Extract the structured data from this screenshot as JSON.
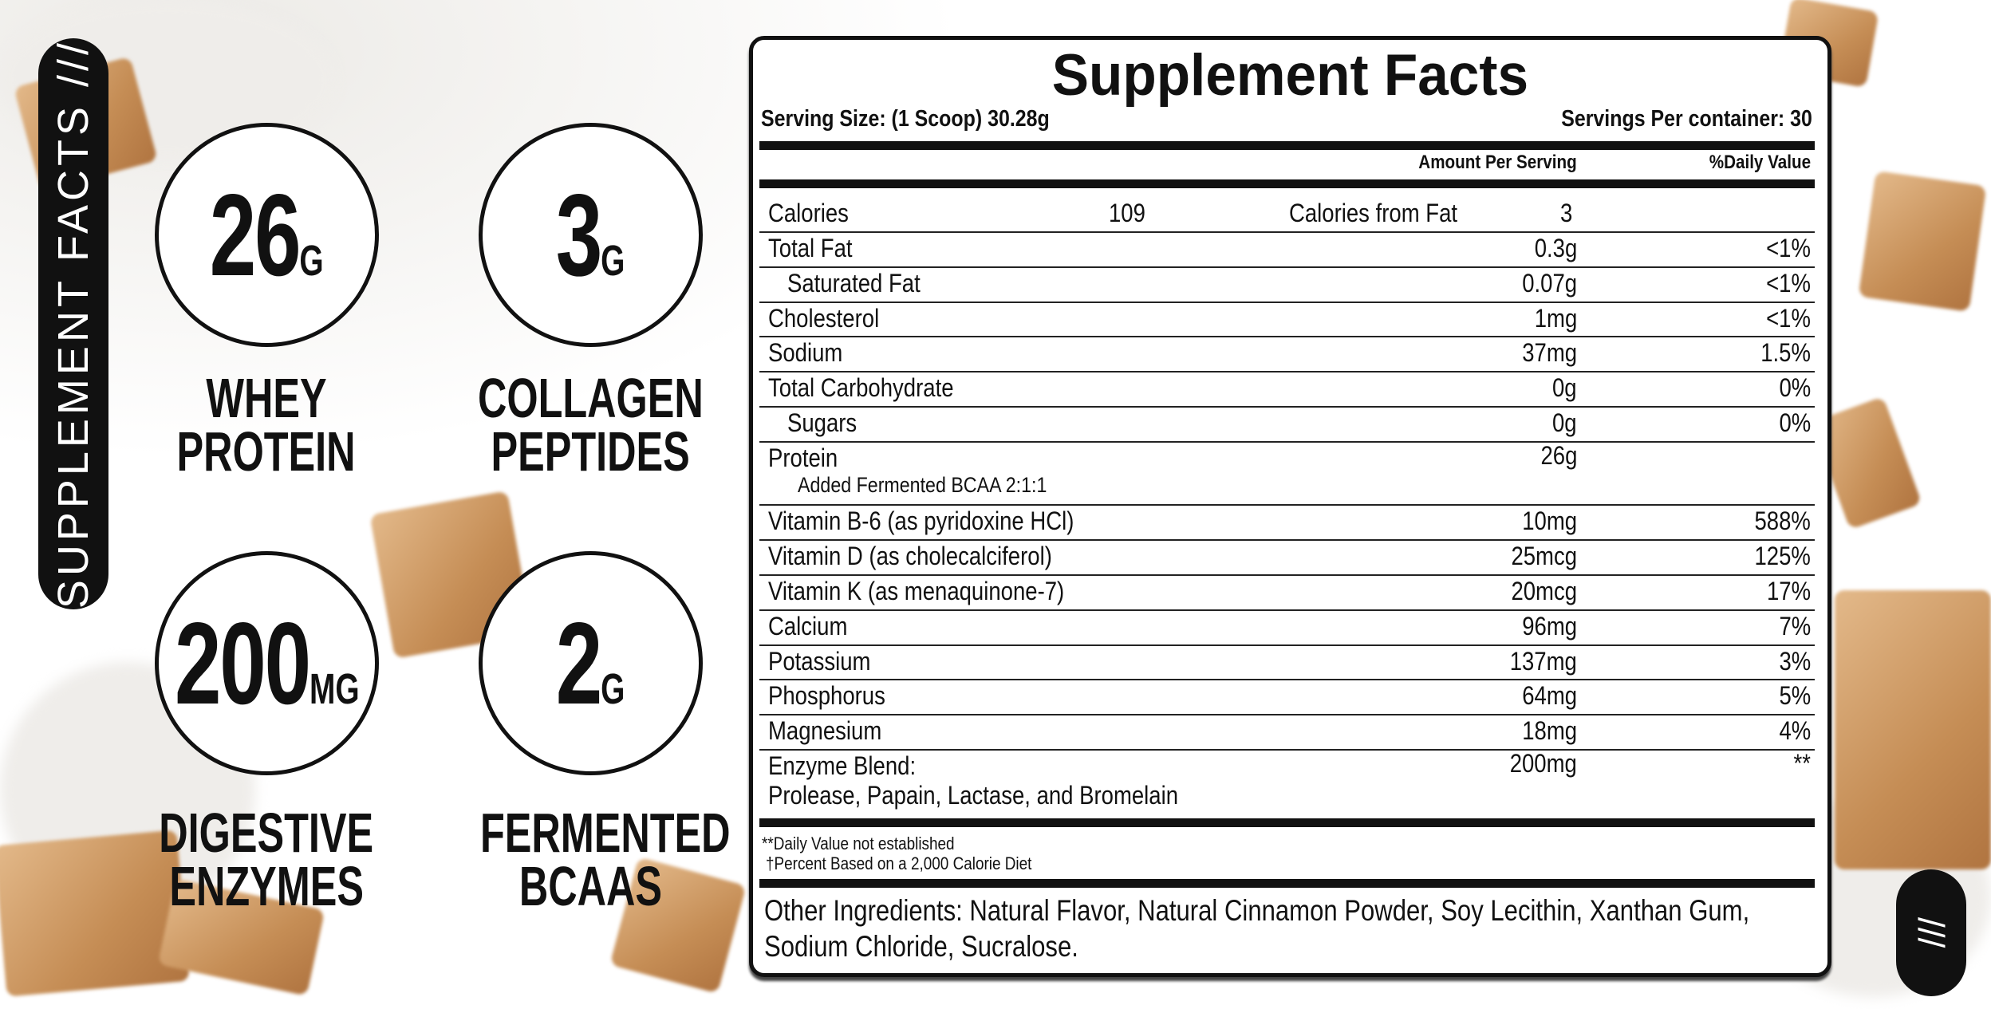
{
  "side_label": "SUPPLEMENT FACTS ///",
  "corner_label": "///",
  "features": [
    {
      "value": "26",
      "unit": "G",
      "label1": "WHEY",
      "label2": "PROTEIN"
    },
    {
      "value": "3",
      "unit": "G",
      "label1": "COLLAGEN",
      "label2": "PEPTIDES"
    },
    {
      "value": "200",
      "unit": "MG",
      "label1": "DIGESTIVE",
      "label2": "ENZYMES"
    },
    {
      "value": "2",
      "unit": "G",
      "label1": "FERMENTED",
      "label2": "BCAAS"
    }
  ],
  "facts": {
    "title": "Supplement Facts",
    "serving_size": "Serving Size: (1 Scoop) 30.28g",
    "servings_per_container": "Servings Per container: 30",
    "col_amount": "Amount Per Serving",
    "col_dv": "%Daily Value",
    "calories_label": "Calories",
    "calories_value": "109",
    "cal_fat_label": "Calories from Fat",
    "cal_fat_value": "3",
    "rows": [
      {
        "name": "Total Fat",
        "amount": "0.3g",
        "dv": "<1%"
      },
      {
        "name": "Saturated Fat",
        "amount": "0.07g",
        "dv": "<1%",
        "indent": true
      },
      {
        "name": "Cholesterol",
        "amount": "1mg",
        "dv": "<1%"
      },
      {
        "name": "Sodium",
        "amount": "37mg",
        "dv": "1.5%"
      },
      {
        "name": "Total Carbohydrate",
        "amount": "0g",
        "dv": "0%"
      },
      {
        "name": "Sugars",
        "amount": "0g",
        "dv": "0%",
        "indent": true
      },
      {
        "name": "Protein",
        "sub": "Added Fermented BCAA 2:1:1",
        "amount": "26g",
        "dv": ""
      },
      {
        "name": "Vitamin B-6 (as pyridoxine HCl)",
        "amount": "10mg",
        "dv": "588%"
      },
      {
        "name": "Vitamin D (as cholecalciferol)",
        "amount": "25mcg",
        "dv": "125%"
      },
      {
        "name": "Vitamin K (as menaquinone-7)",
        "amount": "20mcg",
        "dv": "17%"
      },
      {
        "name": "Calcium",
        "amount": "96mg",
        "dv": "7%"
      },
      {
        "name": "Potassium",
        "amount": "137mg",
        "dv": "3%"
      },
      {
        "name": "Phosphorus",
        "amount": "64mg",
        "dv": "5%"
      },
      {
        "name": "Magnesium",
        "amount": "18mg",
        "dv": "4%"
      },
      {
        "name": "Enzyme Blend:",
        "sub": "Prolease, Papain, Lactase, and Bromelain",
        "amount": "200mg",
        "dv": "**"
      }
    ],
    "footnote1": "**Daily Value not established",
    "footnote2": "†Percent Based on a 2,000 Calorie Diet",
    "other_ingredients_1": "Other Ingredients: Natural Flavor, Natural Cinnamon Powder, Soy Lecithin, Xanthan Gum,",
    "other_ingredients_2": "Sodium Chloride, Sucralose."
  }
}
